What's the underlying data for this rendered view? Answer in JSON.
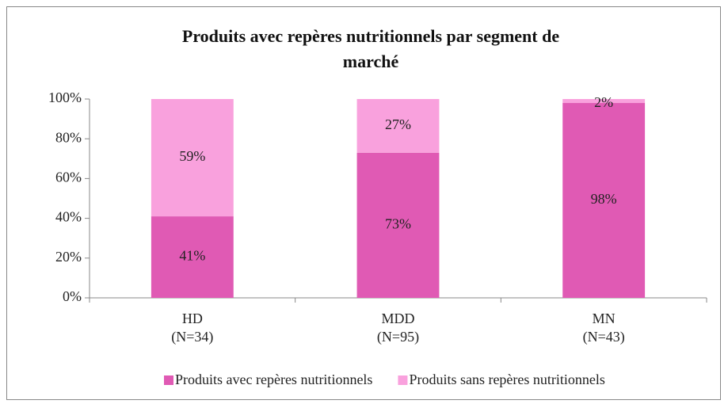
{
  "chart_data": {
    "type": "stacked_bar",
    "title": [
      "Produits avec repères nutritionnels  par segment de",
      "marché"
    ],
    "categories": [
      [
        "HD",
        "(N=34)"
      ],
      [
        "MDD",
        "(N=95)"
      ],
      [
        "MN",
        "(N=43)"
      ]
    ],
    "series": [
      {
        "name": "Produits avec repères nutritionnels",
        "color": "#e05ab4",
        "values": [
          41,
          73,
          98
        ],
        "value_labels": [
          "41%",
          "73%",
          "98%"
        ]
      },
      {
        "name": "Produits sans repères nutritionnels",
        "color": "#f9a1dd",
        "values": [
          59,
          27,
          2
        ],
        "value_labels": [
          "59%",
          "27%",
          "2%"
        ]
      }
    ],
    "ylim": [
      0,
      100
    ],
    "yticks": [
      {
        "value": 0,
        "label": "0%"
      },
      {
        "value": 20,
        "label": "20%"
      },
      {
        "value": 40,
        "label": "40%"
      },
      {
        "value": 60,
        "label": "60%"
      },
      {
        "value": 80,
        "label": "80%"
      },
      {
        "value": 100,
        "label": "100%"
      }
    ],
    "grid": false,
    "legend": "bottom"
  }
}
